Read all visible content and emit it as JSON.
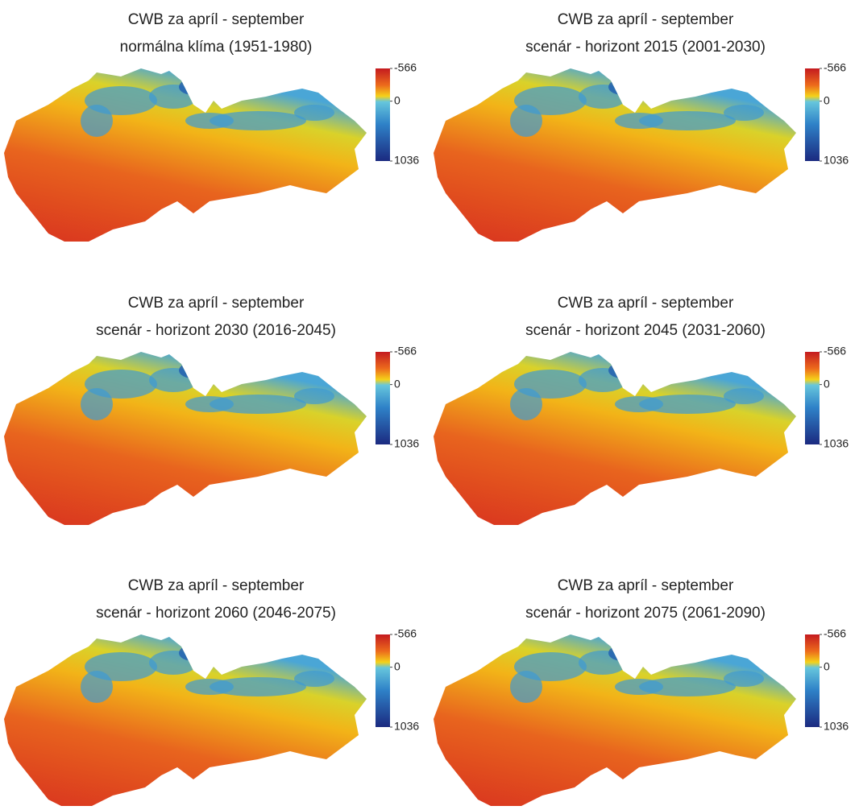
{
  "panels": [
    {
      "title": [
        "CWB za apríl - september",
        "normálna klíma (1951-1980)"
      ],
      "colorbar": {
        "ticks": [
          -566,
          0,
          1036
        ]
      }
    },
    {
      "title": [
        "CWB za apríl - september",
        "scenár - horizont 2015 (2001-2030)"
      ],
      "colorbar": {
        "ticks": [
          -566,
          0,
          1036
        ]
      }
    },
    {
      "title": [
        "CWB za apríl - september",
        "scenár - horizont 2030 (2016-2045)"
      ],
      "colorbar": {
        "ticks": [
          -566,
          0,
          1036
        ]
      }
    },
    {
      "title": [
        "CWB za apríl - september",
        "scenár - horizont 2045 (2031-2060)"
      ],
      "colorbar": {
        "ticks": [
          -566,
          0,
          1036
        ]
      }
    },
    {
      "title": [
        "CWB za apríl - september",
        "scenár - horizont 2060 (2046-2075)"
      ],
      "colorbar": {
        "ticks": [
          -566,
          0,
          1036
        ]
      }
    },
    {
      "title": [
        "CWB za apríl - september",
        "scenár - horizont 2075 (2061-2090)"
      ],
      "colorbar": {
        "ticks": [
          -566,
          0,
          1036
        ]
      }
    }
  ]
}
